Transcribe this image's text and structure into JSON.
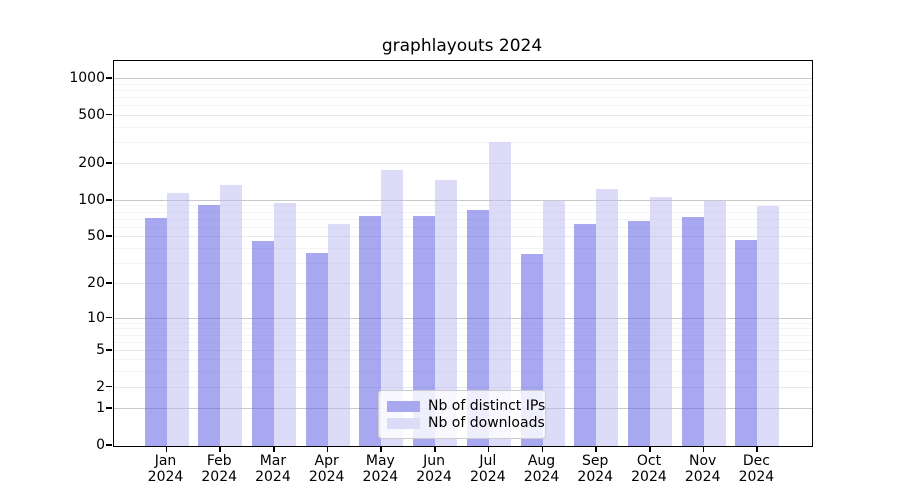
{
  "title": "graphlayouts 2024",
  "chart_data": {
    "type": "bar",
    "title": "graphlayouts 2024",
    "categories": [
      "Jan 2024",
      "Feb 2024",
      "Mar 2024",
      "Apr 2024",
      "May 2024",
      "Jun 2024",
      "Jul 2024",
      "Aug 2024",
      "Sep 2024",
      "Oct 2024",
      "Nov 2024",
      "Dec 2024"
    ],
    "series": [
      {
        "name": "Nb of distinct IPs",
        "color": "#a8a8f1",
        "values": [
          72,
          93,
          46,
          37,
          75,
          75,
          84,
          36,
          64,
          68,
          74,
          47
        ]
      },
      {
        "name": "Nb of downloads",
        "color": "#dcdcf8",
        "values": [
          116,
          135,
          95,
          64,
          180,
          149,
          305,
          99,
          124,
          108,
          99,
          91
        ]
      }
    ],
    "xlabel": "",
    "ylabel": "",
    "y_scale": "log1p",
    "y_ticks": [
      0,
      1,
      2,
      5,
      10,
      20,
      50,
      100,
      200,
      500,
      1000
    ],
    "ylim": [
      0,
      1400
    ],
    "grid": true,
    "legend_position": "lower center"
  }
}
